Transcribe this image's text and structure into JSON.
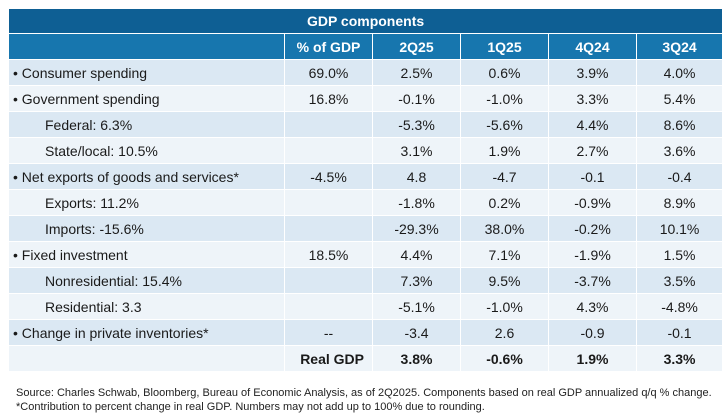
{
  "chart_data": {
    "type": "table",
    "title": "GDP components",
    "columns": [
      "",
      "% of GDP",
      "2Q25",
      "1Q25",
      "4Q24",
      "3Q24"
    ],
    "rows": [
      {
        "label": "• Consumer spending",
        "indent": false,
        "share": "69.0%",
        "values": [
          "2.5%",
          "0.6%",
          "3.9%",
          "4.0%"
        ]
      },
      {
        "label": "• Government spending",
        "indent": false,
        "share": "16.8%",
        "values": [
          "-0.1%",
          "-1.0%",
          "3.3%",
          "5.4%"
        ]
      },
      {
        "label": "Federal: 6.3%",
        "indent": true,
        "share": "",
        "values": [
          "-5.3%",
          "-5.6%",
          "4.4%",
          "8.6%"
        ]
      },
      {
        "label": "State/local: 10.5%",
        "indent": true,
        "share": "",
        "values": [
          "3.1%",
          "1.9%",
          "2.7%",
          "3.6%"
        ]
      },
      {
        "label": "• Net exports of goods and services*",
        "indent": false,
        "share": "-4.5%",
        "values": [
          "4.8",
          "-4.7",
          "-0.1",
          "-0.4"
        ]
      },
      {
        "label": "Exports: 11.2%",
        "indent": true,
        "share": "",
        "values": [
          "-1.8%",
          "0.2%",
          "-0.9%",
          "8.9%"
        ]
      },
      {
        "label": "Imports: -15.6%",
        "indent": true,
        "share": "",
        "values": [
          "-29.3%",
          "38.0%",
          "-0.2%",
          "10.1%"
        ]
      },
      {
        "label": "• Fixed investment",
        "indent": false,
        "share": "18.5%",
        "values": [
          "4.4%",
          "7.1%",
          "-1.9%",
          "1.5%"
        ]
      },
      {
        "label": "Nonresidential: 15.4%",
        "indent": true,
        "share": "",
        "values": [
          "7.3%",
          "9.5%",
          "-3.7%",
          "3.5%"
        ]
      },
      {
        "label": "Residential: 3.3",
        "indent": true,
        "share": "",
        "values": [
          "-5.1%",
          "-1.0%",
          "4.3%",
          "-4.8%"
        ]
      },
      {
        "label": "• Change in private inventories*",
        "indent": false,
        "share": "--",
        "values": [
          "-3.4",
          "2.6",
          "-0.9",
          "-0.1"
        ]
      }
    ],
    "total": {
      "label": "Real GDP",
      "values": [
        "3.8%",
        "-0.6%",
        "1.9%",
        "3.3%"
      ]
    },
    "colors": {
      "title_bg": "#0e5f94",
      "header_bg": "#1776ae",
      "row_dark": "#dbe8f3",
      "row_light": "#eef4f9"
    }
  },
  "footnote": "Source: Charles Schwab, Bloomberg, Bureau of Economic Analysis, as of 2Q2025. Components based on real GDP annualized q/q % change. *Contribution to percent change in real GDP. Numbers may not add up to 100% due to rounding."
}
